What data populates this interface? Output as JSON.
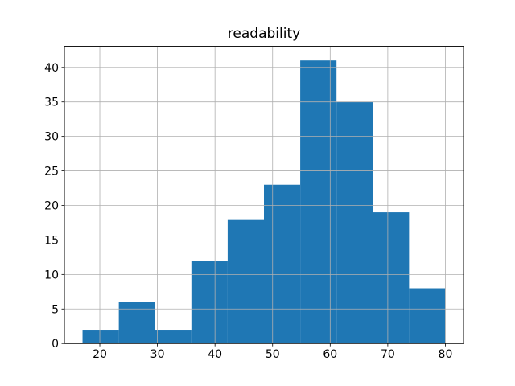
{
  "chart_data": {
    "type": "bar",
    "subtype": "histogram",
    "title": "readability",
    "xlabel": "",
    "ylabel": "",
    "bin_edges": [
      17.0,
      23.3,
      29.6,
      35.9,
      42.2,
      48.5,
      54.8,
      61.1,
      67.4,
      73.7,
      80.0
    ],
    "counts": [
      2,
      6,
      2,
      12,
      18,
      23,
      41,
      35,
      19,
      8
    ],
    "x_ticks": [
      20,
      30,
      40,
      50,
      60,
      70,
      80
    ],
    "y_ticks": [
      0,
      5,
      10,
      15,
      20,
      25,
      30,
      35,
      40
    ],
    "xlim": [
      13.85,
      83.15
    ],
    "ylim": [
      0,
      43.05
    ],
    "grid": true,
    "grid_above_bars": true,
    "legend": false,
    "colors": {
      "bar": "#1f77b4",
      "grid": "#b0b0b0",
      "spine": "#000000",
      "text": "#000000",
      "background": "#ffffff"
    }
  }
}
